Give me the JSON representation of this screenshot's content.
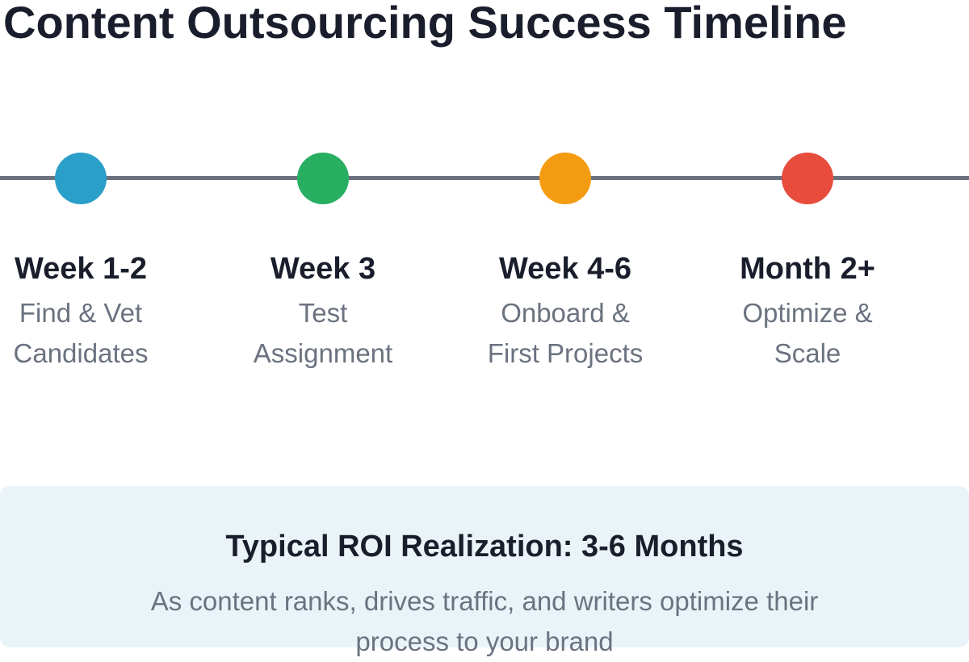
{
  "title": "Content Outsourcing Success Timeline",
  "steps": [
    {
      "label": "Week 1-2",
      "description": "Find & Vet Candidates",
      "color": "#2a9fc9"
    },
    {
      "label": "Week 3",
      "description": "Test Assignment",
      "color": "#27ae60"
    },
    {
      "label": "Week 4-6",
      "description": "Onboard & First Projects",
      "color": "#f39c12"
    },
    {
      "label": "Month 2+",
      "description": "Optimize & Scale",
      "color": "#e74c3c"
    }
  ],
  "summary": {
    "title": "Typical ROI Realization: 3-6 Months",
    "text": "As content ranks, drives traffic, and writers optimize their process to your brand"
  }
}
